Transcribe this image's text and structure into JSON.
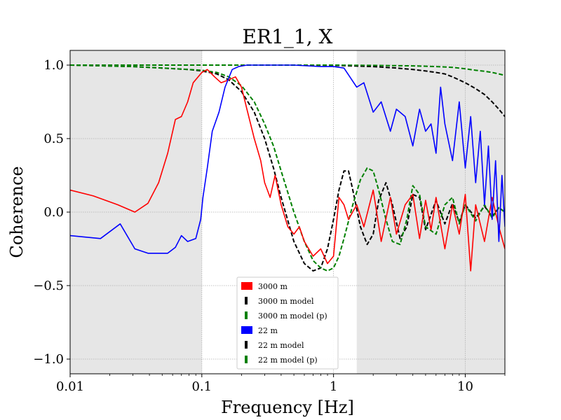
{
  "chart_data": {
    "type": "line",
    "title": "ER1_1, X",
    "xlabel": "Frequency [Hz]",
    "ylabel": "Coherence",
    "xscale": "log",
    "xlim": [
      0.01,
      20
    ],
    "ylim": [
      -1.1,
      1.1
    ],
    "x_ticks": [
      0.01,
      0.1,
      1,
      10
    ],
    "x_tick_labels": [
      "0.01",
      "0.1",
      "1",
      "10"
    ],
    "y_ticks": [
      -1.0,
      -0.5,
      0.0,
      0.5,
      1.0
    ],
    "y_tick_labels": [
      "−1.0",
      "−0.5",
      "0.0",
      "0.5",
      "1.0"
    ],
    "grid": true,
    "legend_position": "bottom-center",
    "shaded_regions": [
      {
        "x_start": 0.01,
        "x_end": 0.1,
        "color": "#e6e6e6"
      },
      {
        "x_start": 1.5,
        "x_end": 20,
        "color": "#e6e6e6"
      }
    ],
    "series": [
      {
        "name": "3000 m",
        "color": "#ff0000",
        "style": "solid",
        "x": [
          0.01,
          0.015,
          0.023,
          0.031,
          0.039,
          0.047,
          0.055,
          0.063,
          0.07,
          0.078,
          0.086,
          0.1,
          0.11,
          0.125,
          0.14,
          0.16,
          0.18,
          0.2,
          0.22,
          0.25,
          0.28,
          0.3,
          0.33,
          0.36,
          0.4,
          0.45,
          0.5,
          0.55,
          0.6,
          0.7,
          0.8,
          0.9,
          1.0,
          1.1,
          1.2,
          1.3,
          1.5,
          1.7,
          2.0,
          2.3,
          2.7,
          3.0,
          3.5,
          4.0,
          4.5,
          5.0,
          5.5,
          6.0,
          7.0,
          8.0,
          9.0,
          10.0,
          11.0,
          12.0,
          14.0,
          16.0,
          18.0,
          20.0
        ],
        "y": [
          0.15,
          0.11,
          0.05,
          0.0,
          0.06,
          0.2,
          0.4,
          0.63,
          0.65,
          0.75,
          0.88,
          0.95,
          0.97,
          0.92,
          0.88,
          0.9,
          0.92,
          0.85,
          0.7,
          0.5,
          0.35,
          0.2,
          0.1,
          0.25,
          0.05,
          -0.1,
          -0.15,
          -0.1,
          -0.2,
          -0.3,
          -0.25,
          -0.35,
          -0.3,
          0.1,
          0.05,
          -0.05,
          0.05,
          -0.1,
          0.15,
          -0.2,
          0.1,
          -0.15,
          0.05,
          0.12,
          -0.18,
          0.08,
          -0.12,
          0.1,
          -0.25,
          0.05,
          -0.15,
          0.12,
          -0.4,
          0.05,
          -0.2,
          0.1,
          -0.1,
          -0.25
        ]
      },
      {
        "name": "3000 m model",
        "color": "#000000",
        "style": "dashed",
        "x": [
          0.01,
          0.03,
          0.05,
          0.08,
          0.1,
          0.13,
          0.16,
          0.2,
          0.25,
          0.3,
          0.35,
          0.4,
          0.5,
          0.6,
          0.7,
          0.8,
          0.9,
          1.0,
          1.1,
          1.2,
          1.3,
          1.4,
          1.6,
          1.8,
          2.0,
          2.2,
          2.5,
          2.8,
          3.2,
          3.6,
          4.0,
          4.5,
          5.0,
          6.0,
          7.0,
          8.0,
          9.0,
          10.0,
          12.0,
          14.0,
          16.0,
          18.0,
          20.0
        ],
        "y": [
          1.0,
          0.99,
          0.98,
          0.97,
          0.96,
          0.94,
          0.9,
          0.82,
          0.68,
          0.5,
          0.3,
          0.1,
          -0.2,
          -0.35,
          -0.4,
          -0.38,
          -0.25,
          -0.05,
          0.15,
          0.28,
          0.28,
          0.15,
          -0.1,
          -0.22,
          -0.15,
          0.08,
          0.2,
          0.05,
          -0.18,
          -0.1,
          0.12,
          0.1,
          -0.12,
          0.08,
          -0.08,
          0.06,
          -0.07,
          0.05,
          -0.04,
          0.04,
          -0.03,
          0.03,
          0.0
        ]
      },
      {
        "name": "3000 m model (p)",
        "color": "#008000",
        "style": "dashed",
        "x": [
          0.01,
          0.03,
          0.05,
          0.08,
          0.1,
          0.13,
          0.16,
          0.2,
          0.25,
          0.3,
          0.35,
          0.4,
          0.5,
          0.6,
          0.7,
          0.8,
          0.9,
          1.0,
          1.1,
          1.2,
          1.4,
          1.6,
          1.8,
          2.0,
          2.2,
          2.5,
          2.8,
          3.2,
          3.6,
          4.0,
          4.5,
          5.0,
          6.0,
          7.0,
          8.0,
          9.0,
          10.0,
          12.0,
          14.0,
          16.0,
          18.0,
          20.0
        ],
        "y": [
          1.0,
          0.99,
          0.98,
          0.97,
          0.965,
          0.95,
          0.92,
          0.86,
          0.75,
          0.6,
          0.45,
          0.28,
          0.0,
          -0.2,
          -0.33,
          -0.38,
          -0.4,
          -0.38,
          -0.3,
          -0.18,
          0.05,
          0.22,
          0.3,
          0.28,
          0.15,
          -0.05,
          -0.2,
          -0.22,
          -0.05,
          0.18,
          0.12,
          -0.1,
          -0.15,
          0.05,
          0.1,
          -0.08,
          0.05,
          -0.06,
          0.05,
          -0.04,
          0.03,
          0.0
        ]
      },
      {
        "name": "22 m",
        "color": "#0000ff",
        "style": "solid",
        "x": [
          0.01,
          0.017,
          0.024,
          0.031,
          0.039,
          0.047,
          0.055,
          0.063,
          0.07,
          0.078,
          0.09,
          0.098,
          0.102,
          0.11,
          0.12,
          0.135,
          0.15,
          0.17,
          0.19,
          0.22,
          0.3,
          0.5,
          0.8,
          1.0,
          1.2,
          1.5,
          1.7,
          2.0,
          2.3,
          2.7,
          3.0,
          3.5,
          4.0,
          4.5,
          5.0,
          5.5,
          6.0,
          6.5,
          7.0,
          8.0,
          9.0,
          10.0,
          11.0,
          12.0,
          13.0,
          14.0,
          15.0,
          16.0,
          17.0,
          18.0,
          19.0,
          20.0
        ],
        "y": [
          -0.16,
          -0.18,
          -0.08,
          -0.25,
          -0.28,
          -0.28,
          -0.28,
          -0.24,
          -0.16,
          -0.2,
          -0.18,
          -0.05,
          0.1,
          0.3,
          0.55,
          0.68,
          0.85,
          0.97,
          0.99,
          1.0,
          1.0,
          1.0,
          0.99,
          0.99,
          0.98,
          0.85,
          0.88,
          0.68,
          0.75,
          0.55,
          0.7,
          0.65,
          0.45,
          0.7,
          0.55,
          0.6,
          0.4,
          0.85,
          0.6,
          0.35,
          0.75,
          0.3,
          0.65,
          0.2,
          0.55,
          0.05,
          0.45,
          -0.05,
          0.35,
          -0.2,
          0.25,
          -0.1
        ]
      },
      {
        "name": "22 m model",
        "color": "#000000",
        "style": "dashed",
        "x": [
          0.01,
          0.1,
          0.5,
          1.0,
          2.0,
          3.0,
          4.0,
          5.0,
          6.0,
          7.0,
          8.0,
          10.0,
          12.0,
          14.0,
          16.0,
          18.0,
          20.0
        ],
        "y": [
          1.0,
          1.0,
          1.0,
          0.998,
          0.99,
          0.98,
          0.97,
          0.96,
          0.95,
          0.94,
          0.92,
          0.88,
          0.84,
          0.8,
          0.75,
          0.7,
          0.65
        ]
      },
      {
        "name": "22 m model (p)",
        "color": "#008000",
        "style": "dashed",
        "x": [
          0.01,
          0.1,
          0.5,
          1.0,
          2.0,
          4.0,
          6.0,
          8.0,
          10.0,
          12.0,
          14.0,
          16.0,
          18.0,
          20.0
        ],
        "y": [
          1.0,
          1.0,
          1.0,
          1.0,
          0.998,
          0.995,
          0.99,
          0.985,
          0.975,
          0.965,
          0.958,
          0.95,
          0.94,
          0.93
        ]
      }
    ]
  }
}
